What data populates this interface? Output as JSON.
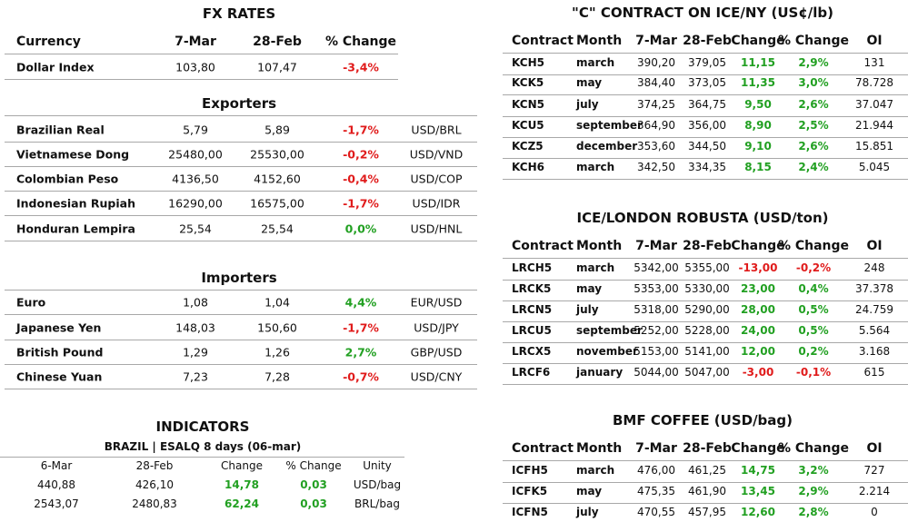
{
  "fx_rates": {
    "title": "FX RATES",
    "header": [
      "Currency",
      "7-Mar",
      "28-Feb",
      "% Change"
    ],
    "rows": [
      [
        "Dollar Index",
        "103,80",
        "107,47",
        "-3,4%"
      ]
    ]
  },
  "exporters": {
    "title": "Exporters",
    "rows": [
      [
        "Brazilian Real",
        "5,79",
        "5,89",
        "-1,7%",
        "USD/BRL"
      ],
      [
        "Vietnamese Dong",
        "25480,00",
        "25530,00",
        "-0,2%",
        "USD/VND"
      ],
      [
        "Colombian Peso",
        "4136,50",
        "4152,60",
        "-0,4%",
        "USD/COP"
      ],
      [
        "Indonesian Rupiah",
        "16290,00",
        "16575,00",
        "-1,7%",
        "USD/IDR"
      ],
      [
        "Honduran Lempira",
        "25,54",
        "25,54",
        "0,0%",
        "USD/HNL"
      ]
    ]
  },
  "importers": {
    "title": "Importers",
    "rows": [
      [
        "Euro",
        "1,08",
        "1,04",
        "4,4%",
        "EUR/USD"
      ],
      [
        "Japanese Yen",
        "148,03",
        "150,60",
        "-1,7%",
        "USD/JPY"
      ],
      [
        "British Pound",
        "1,29",
        "1,26",
        "2,7%",
        "GBP/USD"
      ],
      [
        "Chinese Yuan",
        "7,23",
        "7,28",
        "-0,7%",
        "USD/CNY"
      ]
    ]
  },
  "indicators": {
    "title": "INDICATORS",
    "subtitle": "BRAZIL | ESALQ 8 days (06-mar)",
    "header": [
      "6-Mar",
      "28-Feb",
      "Change",
      "% Change",
      "Unity"
    ],
    "rows": [
      [
        "440,88",
        "426,10",
        "14,78",
        "0,03",
        "USD/bag"
      ],
      [
        "2543,07",
        "2480,83",
        "62,24",
        "0,03",
        "BRL/bag"
      ]
    ]
  },
  "coffee_c": {
    "title": "\"C\" CONTRACT ON ICE/NY (US¢/lb)",
    "header": [
      "Contract",
      "Month",
      "7-Mar",
      "28-Feb",
      "Change",
      "% Change",
      "OI"
    ],
    "rows": [
      [
        "KCH5",
        "march",
        "390,20",
        "379,05",
        "11,15",
        "2,9%",
        "131"
      ],
      [
        "KCK5",
        "may",
        "384,40",
        "373,05",
        "11,35",
        "3,0%",
        "78.728"
      ],
      [
        "KCN5",
        "july",
        "374,25",
        "364,75",
        "9,50",
        "2,6%",
        "37.047"
      ],
      [
        "KCU5",
        "september",
        "364,90",
        "356,00",
        "8,90",
        "2,5%",
        "21.944"
      ],
      [
        "KCZ5",
        "december",
        "353,60",
        "344,50",
        "9,10",
        "2,6%",
        "15.851"
      ],
      [
        "KCH6",
        "march",
        "342,50",
        "334,35",
        "8,15",
        "2,4%",
        "5.045"
      ]
    ]
  },
  "robusta": {
    "title": "ICE/LONDON ROBUSTA (USD/ton)",
    "header": [
      "Contract",
      "Month",
      "7-Mar",
      "28-Feb",
      "Change",
      "% Change",
      "OI"
    ],
    "rows": [
      [
        "LRCH5",
        "march",
        "5342,00",
        "5355,00",
        "-13,00",
        "-0,2%",
        "248"
      ],
      [
        "LRCK5",
        "may",
        "5353,00",
        "5330,00",
        "23,00",
        "0,4%",
        "37.378"
      ],
      [
        "LRCN5",
        "july",
        "5318,00",
        "5290,00",
        "28,00",
        "0,5%",
        "24.759"
      ],
      [
        "LRCU5",
        "september",
        "5252,00",
        "5228,00",
        "24,00",
        "0,5%",
        "5.564"
      ],
      [
        "LRCX5",
        "november",
        "5153,00",
        "5141,00",
        "12,00",
        "0,2%",
        "3.168"
      ],
      [
        "LRCF6",
        "january",
        "5044,00",
        "5047,00",
        "-3,00",
        "-0,1%",
        "615"
      ]
    ]
  },
  "bmf": {
    "title": "BMF COFFEE (USD/bag)",
    "header": [
      "Contract",
      "Month",
      "7-Mar",
      "28-Feb",
      "Change",
      "% Change",
      "OI"
    ],
    "rows": [
      [
        "ICFH5",
        "march",
        "476,00",
        "461,25",
        "14,75",
        "3,2%",
        "727"
      ],
      [
        "ICFK5",
        "may",
        "475,35",
        "461,90",
        "13,45",
        "2,9%",
        "2.214"
      ],
      [
        "ICFN5",
        "july",
        "470,55",
        "457,95",
        "12,60",
        "2,8%",
        "0"
      ]
    ]
  }
}
